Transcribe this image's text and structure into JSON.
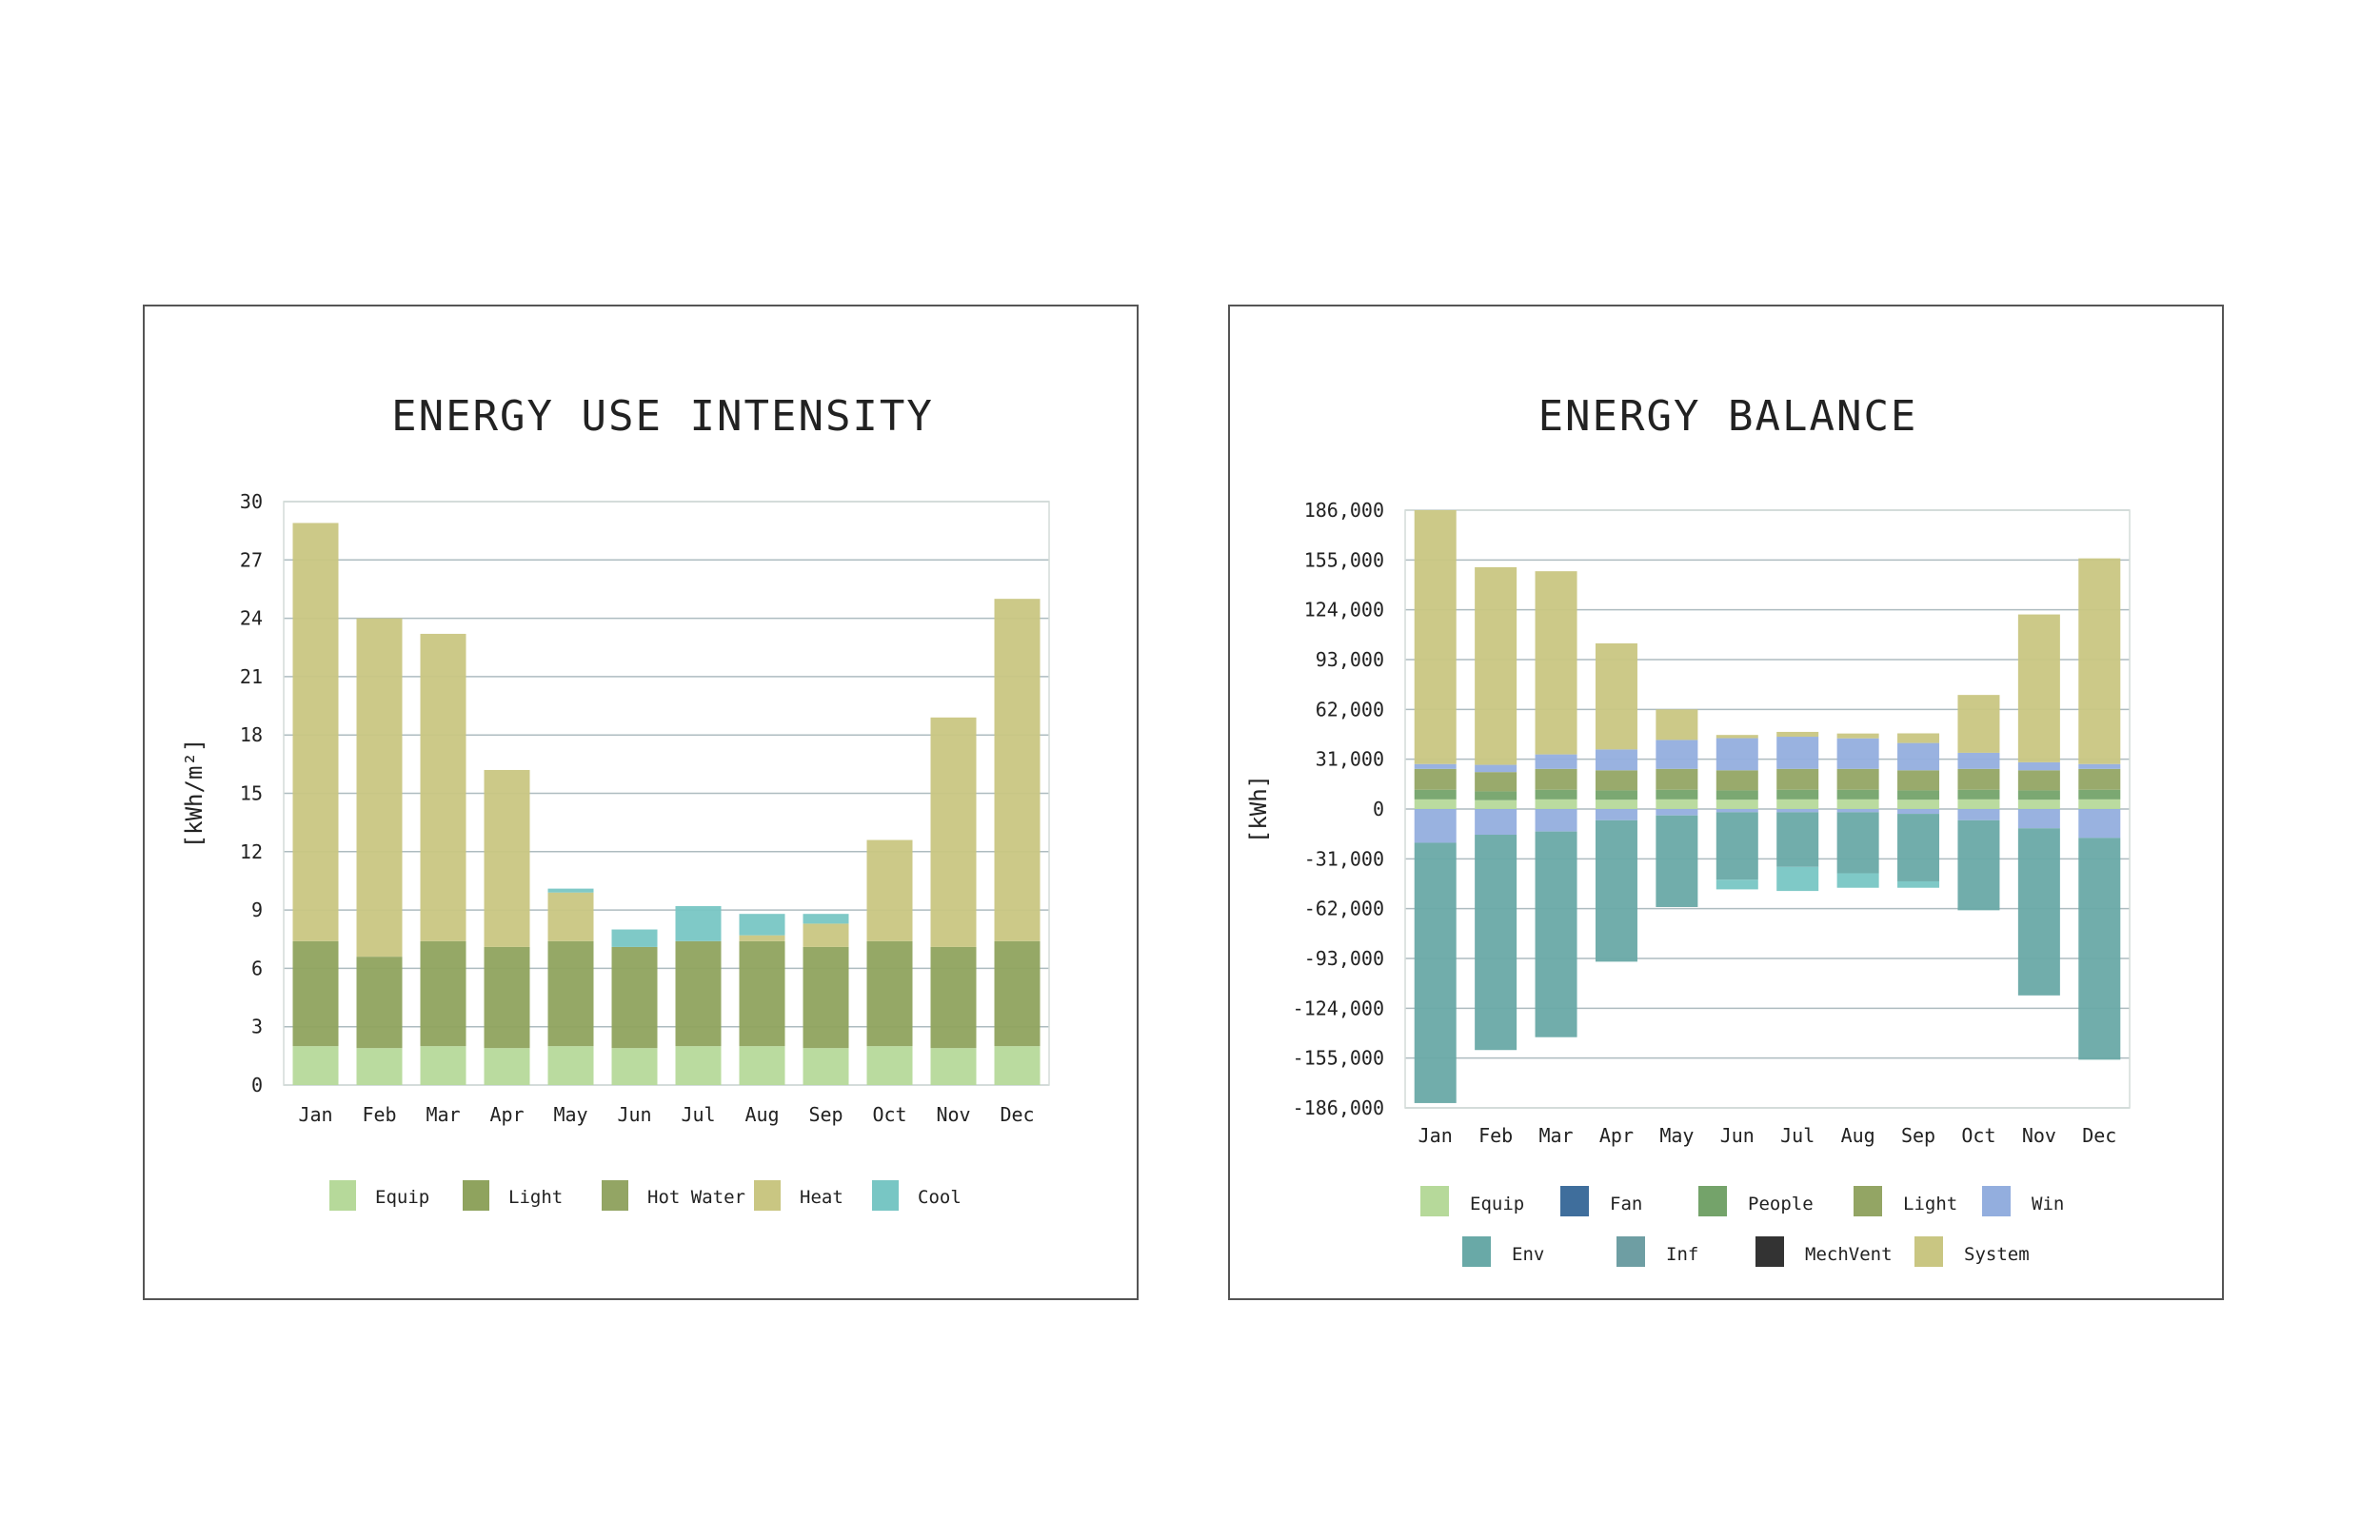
{
  "chart_data": [
    {
      "type": "bar",
      "stacked": true,
      "title": "ENERGY USE INTENSITY",
      "ylabel": "[kWh/m²]",
      "xlabel": "",
      "ylim": [
        0,
        30
      ],
      "yticks": [
        "0",
        "3",
        "6",
        "9",
        "12",
        "15",
        "18",
        "21",
        "24",
        "27",
        "30"
      ],
      "grid": true,
      "legend_position": "bottom",
      "categories": [
        "Jan",
        "Feb",
        "Mar",
        "Apr",
        "May",
        "Jun",
        "Jul",
        "Aug",
        "Sep",
        "Oct",
        "Nov",
        "Dec"
      ],
      "series": [
        {
          "name": "Equip",
          "color": "#b6d99a",
          "values": [
            2.0,
            1.9,
            2.0,
            1.9,
            2.0,
            1.9,
            2.0,
            2.0,
            1.9,
            2.0,
            1.9,
            2.0
          ]
        },
        {
          "name": "Light",
          "color": "#8fa35e",
          "values": [
            5.4,
            4.7,
            5.4,
            5.2,
            5.4,
            5.2,
            5.4,
            5.4,
            5.2,
            5.4,
            5.2,
            5.4
          ]
        },
        {
          "name": "Hot Water",
          "color": "#93a564",
          "values": [
            0.0,
            0.0,
            0.0,
            0.0,
            0.0,
            0.0,
            0.0,
            0.0,
            0.0,
            0.0,
            0.0,
            0.0
          ]
        },
        {
          "name": "Heat",
          "color": "#c9c682",
          "values": [
            21.5,
            17.4,
            15.8,
            9.1,
            2.5,
            0.0,
            0.0,
            0.3,
            1.2,
            5.2,
            11.8,
            17.6
          ]
        },
        {
          "name": "Cool",
          "color": "#78c6c4",
          "values": [
            0.0,
            0.0,
            0.0,
            0.0,
            0.2,
            0.9,
            1.8,
            1.1,
            0.5,
            0.0,
            0.0,
            0.0
          ]
        }
      ]
    },
    {
      "type": "bar",
      "stacked": true,
      "title": "ENERGY BALANCE",
      "ylabel": "[kWh]",
      "xlabel": "",
      "ylim": [
        -186000,
        186000
      ],
      "yticks": [
        "-186,000",
        "-155,000",
        "-124,000",
        "-93,000",
        "-62,000",
        "-31,000",
        "0",
        "31,000",
        "62,000",
        "93,000",
        "124,000",
        "155,000",
        "186,000"
      ],
      "grid": true,
      "legend_position": "bottom",
      "categories": [
        "Jan",
        "Feb",
        "Mar",
        "Apr",
        "May",
        "Jun",
        "Jul",
        "Aug",
        "Sep",
        "Oct",
        "Nov",
        "Dec"
      ],
      "series": [
        {
          "name": "Equip",
          "color": "#b6d99a",
          "values": [
            6000,
            5500,
            6000,
            5800,
            6000,
            5800,
            6000,
            6000,
            5800,
            6000,
            5800,
            6000
          ]
        },
        {
          "name": "Fan",
          "color": "#3f6e9c",
          "values": [
            0,
            0,
            0,
            0,
            0,
            0,
            0,
            0,
            0,
            0,
            0,
            0
          ]
        },
        {
          "name": "People",
          "color": "#74a36a",
          "values": [
            6000,
            5500,
            6000,
            5800,
            6000,
            5800,
            6000,
            6000,
            5800,
            6000,
            5800,
            6000
          ]
        },
        {
          "name": "Light",
          "color": "#93a564",
          "values": [
            13000,
            12000,
            13000,
            12500,
            13000,
            12500,
            13000,
            13000,
            12500,
            13000,
            12500,
            13000
          ]
        },
        {
          "name": "Win",
          "color": "#93aede",
          "values": [
            3000,
            4500,
            9000,
            13000,
            18000,
            20000,
            20000,
            19000,
            17000,
            10000,
            5000,
            3000
          ]
        },
        {
          "name": "Env",
          "color": "#69a9a7",
          "values": [
            -162000,
            -134000,
            -128000,
            -88000,
            -57000,
            -42000,
            -34000,
            -38000,
            -42000,
            -56000,
            -104000,
            -138000
          ]
        },
        {
          "name": "Inf",
          "color": "#6e9ea3",
          "values": [
            0,
            0,
            0,
            0,
            0,
            0,
            0,
            0,
            0,
            0,
            0,
            0
          ]
        },
        {
          "name": "MechVent",
          "color": "#333333",
          "values": [
            0,
            0,
            0,
            0,
            0,
            0,
            0,
            0,
            0,
            0,
            0,
            0
          ]
        },
        {
          "name": "System",
          "color": "#c9c682",
          "values": [
            158000,
            123000,
            114000,
            66000,
            19000,
            2000,
            3000,
            3000,
            6000,
            36000,
            92000,
            128000
          ]
        }
      ],
      "negative_components": {
        "Win": [
          -21000,
          -16000,
          -14000,
          -7000,
          -4000,
          -2000,
          -2000,
          -2000,
          -3000,
          -7000,
          -12000,
          -18000
        ],
        "Cool": [
          0,
          0,
          0,
          0,
          0,
          -6000,
          -15000,
          -9000,
          -4000,
          0,
          0,
          0
        ]
      }
    }
  ]
}
